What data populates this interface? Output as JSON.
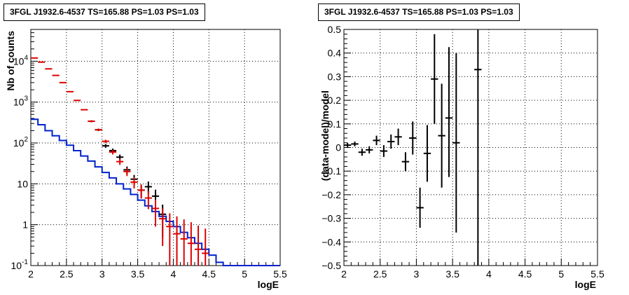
{
  "chart_data": [
    {
      "type": "histogram",
      "title": "3FGL J1932.6-4537 TS=165.88 PS=1.03 PS=1.03",
      "xlabel": "logE",
      "ylabel": "Nb of counts",
      "xlim": [
        2,
        5.5
      ],
      "ylim": [
        0.1,
        60000
      ],
      "yscale": "log",
      "grid": true,
      "x_ticks": [
        "2",
        "2.5",
        "3",
        "3.5",
        "4",
        "4.5",
        "5",
        "5.5"
      ],
      "y_ticks": [
        {
          "value": 0.1,
          "label": "10",
          "exp": "-1"
        },
        {
          "value": 1,
          "label": "1",
          "exp": ""
        },
        {
          "value": 10,
          "label": "10",
          "exp": ""
        },
        {
          "value": 100,
          "label": "10",
          "exp": "2"
        },
        {
          "value": 1000,
          "label": "10",
          "exp": "3"
        },
        {
          "value": 10000,
          "label": "10",
          "exp": "4"
        }
      ],
      "bin_edges": [
        2.0,
        2.1,
        2.2,
        2.3,
        2.4,
        2.5,
        2.6,
        2.7,
        2.8,
        2.9,
        3.0,
        3.1,
        3.2,
        3.3,
        3.4,
        3.5,
        3.6,
        3.7,
        3.8,
        3.9,
        4.0,
        4.1,
        4.2,
        4.3,
        4.4,
        4.5,
        4.6,
        4.7,
        4.8,
        4.9,
        5.0,
        5.1,
        5.2,
        5.3,
        5.4,
        5.5
      ],
      "series": [
        {
          "type": "step",
          "color": "#0022cc",
          "values": [
            380,
            280,
            200,
            150,
            115,
            88,
            65,
            48,
            36,
            26,
            19,
            14,
            10,
            7.5,
            5.5,
            4.0,
            2.9,
            2.1,
            1.6,
            1.2,
            0.9,
            0.65,
            0.48,
            0.35,
            0.25,
            0.18,
            0.12,
            0.1,
            0.1,
            0.1,
            0.1,
            0.1,
            0.1,
            0.1,
            0.1
          ]
        },
        {
          "type": "errorbar",
          "color": "#000000",
          "x": [
            2.85,
            2.95,
            3.05,
            3.15,
            3.25,
            3.35,
            3.45,
            3.55,
            3.65,
            3.75,
            3.85
          ],
          "y": [
            340,
            210,
            85,
            65,
            45,
            22,
            13,
            7.0,
            8.5,
            5.0,
            1.8
          ],
          "yerr_low": [
            18,
            15,
            9,
            8,
            7,
            4.5,
            3.5,
            2.6,
            2.9,
            2.2,
            1.3
          ],
          "yerr_high": [
            18,
            15,
            9,
            8,
            7,
            4.5,
            3.5,
            2.6,
            2.9,
            2.2,
            1.3
          ]
        },
        {
          "type": "errorbar",
          "color": "#dd0000",
          "x": [
            2.05,
            2.15,
            2.25,
            2.35,
            2.45,
            2.55,
            2.65,
            2.75,
            2.85,
            2.95,
            3.05,
            3.15,
            3.25,
            3.35,
            3.45,
            3.55,
            3.65,
            3.75,
            3.85,
            3.95,
            4.05,
            4.15,
            4.25,
            4.35,
            4.45
          ],
          "y": [
            12000,
            9500,
            6500,
            4500,
            3000,
            1800,
            1100,
            650,
            340,
            210,
            110,
            60,
            35,
            20,
            11,
            7.0,
            4.5,
            2.5,
            1.4,
            0.9,
            0.6,
            0.45,
            0.35,
            0.25,
            0.2
          ],
          "yerr_low": [
            0,
            0,
            0,
            0,
            0,
            0,
            0,
            0,
            18,
            14,
            10,
            7.7,
            5.9,
            4.5,
            3.3,
            2.6,
            2.1,
            1.6,
            1.1,
            0.8,
            0.5,
            0.42,
            0.33,
            0.24,
            0.19
          ],
          "yerr_high": [
            0,
            0,
            0,
            0,
            0,
            0,
            0,
            0,
            18,
            14,
            10,
            7.7,
            5.9,
            4.5,
            3.3,
            2.6,
            2.1,
            1.6,
            1.1,
            1.0,
            1.0,
            0.9,
            0.8,
            0.7,
            0.6
          ]
        }
      ]
    },
    {
      "type": "errorbar",
      "title": "3FGL J1932.6-4537 TS=165.88 PS=1.03 PS=1.03",
      "xlabel": "logE",
      "ylabel": "(data-model)/model",
      "xlim": [
        2,
        5.5
      ],
      "ylim": [
        -0.5,
        0.5
      ],
      "grid": true,
      "x_ticks": [
        "2",
        "2.5",
        "3",
        "3.5",
        "4",
        "4.5",
        "5",
        "5.5"
      ],
      "y_ticks": [
        "−0.5",
        "−0.4",
        "−0.3",
        "−0.2",
        "−0.1",
        "0",
        "0.1",
        "0.2",
        "0.3",
        "0.4",
        "0.5"
      ],
      "points": {
        "color": "#000000",
        "x": [
          2.05,
          2.15,
          2.25,
          2.35,
          2.45,
          2.55,
          2.65,
          2.75,
          2.85,
          2.95,
          3.05,
          3.15,
          3.25,
          3.35,
          3.45,
          3.55,
          3.85
        ],
        "y": [
          0.01,
          0.015,
          -0.02,
          -0.01,
          0.03,
          -0.015,
          0.025,
          0.045,
          -0.06,
          0.04,
          -0.255,
          -0.025,
          0.29,
          0.05,
          0.125,
          0.02,
          0.33
        ],
        "yerr_low": [
          0.01,
          0.01,
          0.015,
          0.015,
          0.02,
          0.025,
          0.03,
          0.035,
          0.04,
          0.07,
          0.085,
          0.12,
          0.19,
          0.22,
          0.25,
          0.38,
          0.9
        ],
        "yerr_high": [
          0.01,
          0.01,
          0.015,
          0.015,
          0.02,
          0.025,
          0.03,
          0.035,
          0.04,
          0.07,
          0.085,
          0.12,
          0.19,
          0.22,
          0.3,
          0.38,
          0.9
        ]
      }
    }
  ]
}
